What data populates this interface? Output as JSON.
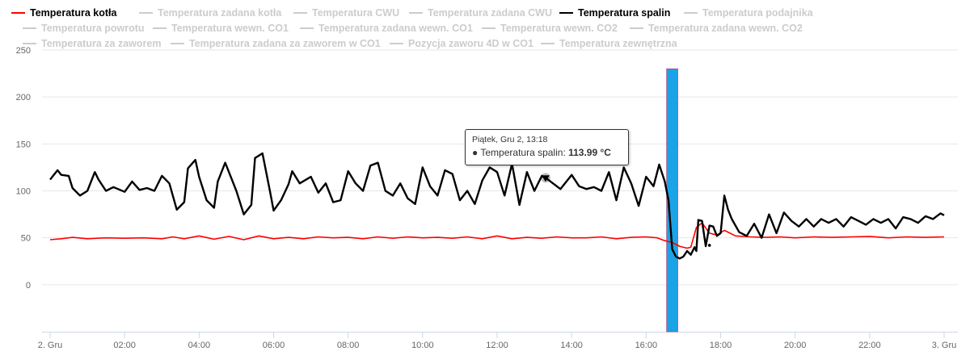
{
  "legend": {
    "row1": [
      {
        "label": "Temperatura kotła",
        "active": true,
        "color": "#ff0000"
      },
      {
        "label": "Temperatura zadana kotła",
        "active": false,
        "color": "#cccccc"
      },
      {
        "label": "Temperatura CWU",
        "active": false,
        "color": "#cccccc"
      },
      {
        "label": "Temperatura zadana CWU",
        "active": false,
        "color": "#cccccc"
      },
      {
        "label": "Temperatura spalin",
        "active": true,
        "color": "#000000"
      },
      {
        "label": "Temperatura podajnika",
        "active": false,
        "color": "#cccccc"
      }
    ],
    "row2": [
      {
        "label": "Temperatura powrotu",
        "active": false,
        "color": "#cccccc"
      },
      {
        "label": "Temperatura wewn. CO1",
        "active": false,
        "color": "#cccccc"
      },
      {
        "label": "Temperatura zadana wewn. CO1",
        "active": false,
        "color": "#cccccc"
      },
      {
        "label": "Temperatura wewn. CO2",
        "active": false,
        "color": "#cccccc"
      },
      {
        "label": "Temperatura zadana wewn. CO2",
        "active": false,
        "color": "#cccccc"
      }
    ],
    "row3": [
      {
        "label": "Temperatura za zaworem",
        "active": false,
        "color": "#cccccc"
      },
      {
        "label": "Temperatura zadana za zaworem w CO1",
        "active": false,
        "color": "#cccccc"
      },
      {
        "label": "Pozycja zaworu 4D w CO1",
        "active": false,
        "color": "#cccccc"
      },
      {
        "label": "Temperatura zewnętrzna",
        "active": false,
        "color": "#cccccc"
      }
    ]
  },
  "tooltip": {
    "date": "Piątek, Gru 2, 13:18",
    "series": "Temperatura spalin",
    "value": "113.99 °C"
  },
  "chart_data": {
    "type": "line",
    "x_ticks": [
      "2. Gru",
      "02:00",
      "04:00",
      "06:00",
      "08:00",
      "10:00",
      "12:00",
      "14:00",
      "16:00",
      "18:00",
      "20:00",
      "22:00",
      "3. Gru"
    ],
    "y_ticks": [
      "250",
      "200",
      "150",
      "100",
      "50",
      "0"
    ],
    "ylim": [
      -50,
      250
    ],
    "xlim_hours": [
      0,
      24
    ],
    "grid": true,
    "highlight_band_hours": [
      16.55,
      16.85
    ],
    "highlight_color": "#1aa3e6",
    "series": [
      {
        "name": "Temperatura kotła",
        "color": "#ff0000",
        "x": [
          0,
          0.3,
          0.6,
          1,
          1.5,
          2,
          2.5,
          3,
          3.3,
          3.6,
          4,
          4.4,
          4.8,
          5.2,
          5.6,
          6,
          6.4,
          6.8,
          7.2,
          7.6,
          8,
          8.4,
          8.8,
          9.2,
          9.6,
          10,
          10.4,
          10.8,
          11.2,
          11.6,
          12,
          12.4,
          12.8,
          13.2,
          13.6,
          14,
          14.4,
          14.8,
          15.2,
          15.6,
          16,
          16.3,
          16.5,
          16.7,
          16.9,
          17.1,
          17.2,
          17.35,
          17.5,
          17.7,
          17.9,
          18.1,
          18.4,
          18.8,
          19.2,
          19.6,
          20,
          20.5,
          21,
          21.5,
          22,
          22.5,
          23,
          23.5,
          24
        ],
        "y": [
          48,
          49,
          50.5,
          49,
          50,
          49.5,
          50,
          49,
          51,
          49,
          52,
          48.5,
          51.5,
          48,
          52,
          49,
          50.5,
          49,
          51,
          50,
          50.5,
          49,
          51,
          49.5,
          51,
          50,
          50.5,
          49.5,
          51,
          49,
          52,
          49,
          50.5,
          49.5,
          51,
          50,
          50,
          51,
          49,
          50.5,
          51,
          50,
          47,
          45,
          41,
          39,
          40,
          61,
          66,
          55,
          53,
          58,
          52,
          51,
          50.5,
          51,
          50,
          51,
          50.5,
          51,
          51.5,
          50,
          51,
          50.5,
          51
        ]
      },
      {
        "name": "Temperatura spalin",
        "color": "#000000",
        "x": [
          0,
          0.2,
          0.3,
          0.5,
          0.6,
          0.8,
          1,
          1.2,
          1.3,
          1.5,
          1.7,
          2,
          2.2,
          2.4,
          2.6,
          2.8,
          3,
          3.2,
          3.4,
          3.6,
          3.7,
          3.9,
          4,
          4.2,
          4.4,
          4.5,
          4.7,
          5,
          5.2,
          5.4,
          5.5,
          5.7,
          5.9,
          6,
          6.2,
          6.4,
          6.5,
          6.7,
          7,
          7.2,
          7.4,
          7.6,
          7.8,
          8,
          8.2,
          8.4,
          8.6,
          8.8,
          9,
          9.2,
          9.4,
          9.6,
          9.8,
          10,
          10.2,
          10.4,
          10.6,
          10.8,
          11,
          11.2,
          11.4,
          11.6,
          11.8,
          12,
          12.2,
          12.4,
          12.6,
          12.8,
          13,
          13.2,
          13.3,
          13.5,
          13.7,
          14,
          14.2,
          14.4,
          14.6,
          14.8,
          15,
          15.2,
          15.4,
          15.6,
          15.8,
          16,
          16.2,
          16.35,
          16.5,
          16.6,
          16.7,
          16.8,
          16.9,
          17,
          17.1,
          17.2,
          17.3,
          17.35,
          17.4,
          17.5,
          17.6,
          17.7,
          17.8,
          17.9,
          18,
          18.1,
          18.2,
          18.3,
          18.5,
          18.7,
          18.9,
          19.1,
          19.3,
          19.5,
          19.7,
          19.9,
          20.1,
          20.3,
          20.5,
          20.7,
          20.9,
          21.1,
          21.3,
          21.5,
          21.7,
          21.9,
          22.1,
          22.3,
          22.5,
          22.7,
          22.9,
          23.1,
          23.3,
          23.5,
          23.7,
          23.9,
          24
        ],
        "y": [
          112,
          122,
          117,
          116,
          103,
          95,
          100,
          120,
          112,
          100,
          104,
          99,
          110,
          101,
          103,
          100,
          116,
          108,
          80,
          88,
          124,
          133,
          115,
          90,
          82,
          110,
          130,
          100,
          75,
          85,
          135,
          140,
          100,
          79,
          90,
          107,
          121,
          108,
          115,
          98,
          108,
          88,
          90,
          121,
          108,
          100,
          127,
          130,
          100,
          95,
          108,
          92,
          86,
          125,
          105,
          95,
          122,
          118,
          90,
          100,
          86,
          111,
          125,
          120,
          95,
          129,
          85,
          120,
          100,
          116,
          114,
          108,
          102,
          117,
          105,
          102,
          104,
          100,
          120,
          90,
          125,
          108,
          84,
          115,
          105,
          128,
          110,
          90,
          38,
          30,
          28,
          30,
          36,
          32,
          40,
          36,
          69,
          68,
          41,
          63,
          62,
          52,
          55,
          95,
          80,
          70,
          56,
          52,
          65,
          50,
          75,
          55,
          77,
          68,
          62,
          70,
          62,
          70,
          66,
          70,
          62,
          72,
          68,
          64,
          70,
          66,
          70,
          60,
          72,
          70,
          66,
          73,
          70,
          76,
          74
        ]
      }
    ]
  }
}
